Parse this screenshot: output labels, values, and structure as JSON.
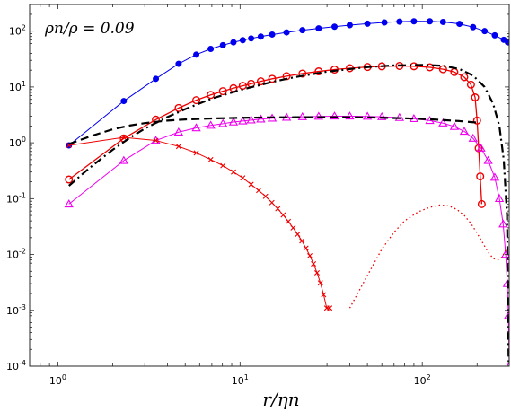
{
  "chart_data": {
    "type": "line",
    "title": "ρn/ρ = 0.09",
    "xlabel": "r/ηn",
    "ylabel": "",
    "xscale": "log",
    "yscale": "log",
    "xlim": [
      0.7,
      300
    ],
    "ylim": [
      0.0001,
      300
    ],
    "x_ticks": [
      {
        "value": 1,
        "label": "10^0"
      },
      {
        "value": 10,
        "label": "10^1"
      },
      {
        "value": 100,
        "label": "10^2"
      }
    ],
    "y_ticks": [
      {
        "value": 0.0001,
        "label": "10^-4"
      },
      {
        "value": 0.001,
        "label": "10^-3"
      },
      {
        "value": 0.01,
        "label": "10^-2"
      },
      {
        "value": 0.1,
        "label": "10^-1"
      },
      {
        "value": 1,
        "label": "10^0"
      },
      {
        "value": 10,
        "label": "10^1"
      },
      {
        "value": 100,
        "label": "10^2"
      }
    ],
    "grid": false,
    "legend": "none",
    "series": [
      {
        "color": "#0000ee",
        "line": "solid",
        "marker": "filled-circle",
        "line_width": 1,
        "x": [
          1.15,
          2.3,
          3.45,
          4.6,
          5.75,
          6.9,
          8.05,
          9.2,
          10.35,
          11.5,
          13,
          15,
          18,
          22,
          27,
          33,
          40,
          50,
          62,
          75,
          90,
          110,
          130,
          160,
          190,
          220,
          250,
          280,
          295
        ],
        "y": [
          0.9,
          5.6,
          14,
          26,
          38,
          48,
          56,
          63,
          69,
          74,
          80,
          87,
          95,
          104,
          112,
          120,
          128,
          136,
          143,
          148,
          150,
          150,
          146,
          135,
          118,
          100,
          84,
          70,
          63
        ]
      },
      {
        "color": "#ee0000",
        "line": "solid",
        "marker": "open-circle",
        "line_width": 1.3,
        "x": [
          1.15,
          2.3,
          3.45,
          4.6,
          5.75,
          6.9,
          8.05,
          9.2,
          10.35,
          11.5,
          13,
          15,
          18,
          22,
          27,
          33,
          40,
          50,
          60,
          75,
          90,
          110,
          130,
          150,
          170,
          185,
          195,
          200,
          204,
          208,
          212
        ],
        "y": [
          0.22,
          1.2,
          2.6,
          4.2,
          5.8,
          7.2,
          8.4,
          9.5,
          10.5,
          11.4,
          12.6,
          14,
          15.6,
          17.4,
          19,
          20.5,
          21.7,
          22.8,
          23.4,
          23.8,
          23.5,
          22.5,
          20.8,
          18.5,
          15,
          11,
          6.5,
          2.5,
          0.8,
          0.25,
          0.08
        ]
      },
      {
        "color": "#ee00ee",
        "line": "solid",
        "marker": "open-triangle",
        "line_width": 1,
        "x": [
          1.15,
          2.3,
          3.45,
          4.6,
          5.75,
          6.9,
          8.05,
          9.2,
          10.35,
          11.5,
          13,
          15,
          18,
          22,
          27,
          33,
          40,
          50,
          60,
          75,
          90,
          110,
          130,
          150,
          170,
          190,
          210,
          230,
          250,
          265,
          278,
          287,
          293,
          297,
          300
        ],
        "y": [
          0.08,
          0.48,
          1.1,
          1.55,
          1.85,
          2.05,
          2.2,
          2.35,
          2.45,
          2.55,
          2.65,
          2.75,
          2.85,
          2.92,
          2.97,
          3.0,
          3.0,
          2.97,
          2.92,
          2.82,
          2.7,
          2.5,
          2.25,
          1.95,
          1.6,
          1.2,
          0.8,
          0.48,
          0.24,
          0.1,
          0.035,
          0.01,
          0.003,
          0.0008,
          0.0001
        ]
      },
      {
        "color": "#ee0000",
        "line": "solid",
        "marker": "cross",
        "line_width": 1,
        "x": [
          1.15,
          2.3,
          3.45,
          4.6,
          5.75,
          6.9,
          8.05,
          9.2,
          10.35,
          11.5,
          12.65,
          13.8,
          14.95,
          16.1,
          17.25,
          18.4,
          19.55,
          20.7,
          21.85,
          23,
          24.15,
          25.3,
          26.45,
          27.6,
          28.75,
          29.9,
          31.05
        ],
        "y": [
          0.9,
          1.25,
          1.1,
          0.86,
          0.66,
          0.5,
          0.39,
          0.3,
          0.235,
          0.18,
          0.14,
          0.11,
          0.085,
          0.066,
          0.051,
          0.039,
          0.03,
          0.023,
          0.0175,
          0.013,
          0.0095,
          0.0068,
          0.0047,
          0.0031,
          0.0019,
          0.0011,
          0.0011
        ]
      },
      {
        "color": "#ee0000",
        "line": "dotted",
        "marker": "none",
        "line_width": 1.3,
        "x": [
          40,
          50,
          60,
          70,
          80,
          95,
          110,
          125,
          140,
          155,
          170,
          185,
          200,
          215,
          230,
          245,
          260,
          275,
          290
        ],
        "y": [
          0.0011,
          0.0042,
          0.0125,
          0.025,
          0.04,
          0.058,
          0.07,
          0.077,
          0.074,
          0.064,
          0.05,
          0.036,
          0.024,
          0.016,
          0.011,
          0.0085,
          0.008,
          0.009,
          0.013
        ]
      },
      {
        "color": "#000000",
        "line": "dashed",
        "marker": "none",
        "line_width": 2.2,
        "x": [
          1.15,
          1.5,
          2,
          2.5,
          3,
          4,
          5,
          7,
          10,
          15,
          20,
          30,
          50,
          80,
          120,
          160,
          200
        ],
        "y": [
          0.95,
          1.3,
          1.75,
          2.05,
          2.25,
          2.5,
          2.62,
          2.73,
          2.8,
          2.85,
          2.87,
          2.88,
          2.85,
          2.75,
          2.6,
          2.45,
          2.3
        ]
      },
      {
        "color": "#000000",
        "line": "dashdot",
        "marker": "none",
        "line_width": 2.2,
        "x": [
          1.15,
          1.5,
          2,
          2.5,
          3,
          4,
          5,
          7,
          10,
          15,
          20,
          30,
          50,
          70,
          100,
          130,
          160,
          190,
          220,
          245,
          265,
          280,
          292,
          298
        ],
        "y": [
          0.17,
          0.36,
          0.75,
          1.25,
          1.8,
          2.9,
          4.0,
          6.2,
          8.8,
          12.3,
          15,
          18.8,
          22.7,
          24.3,
          24.8,
          24,
          21,
          16,
          10,
          5,
          2,
          0.5,
          0.05,
          0.0001
        ]
      }
    ]
  }
}
